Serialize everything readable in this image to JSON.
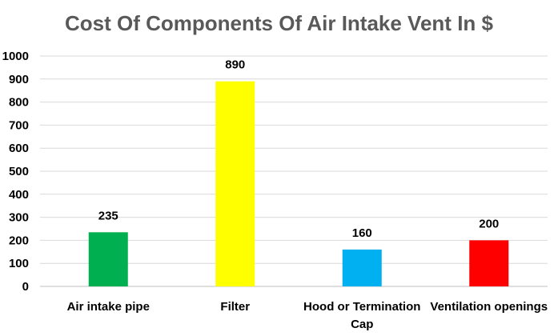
{
  "chart_data": {
    "type": "bar",
    "title": "Cost Of Components Of Air Intake Vent In $",
    "xlabel": "",
    "ylabel": "",
    "categories": [
      [
        "Air intake pipe"
      ],
      [
        "Filter"
      ],
      [
        "Hood or Termination",
        "Cap"
      ],
      [
        "Ventilation openings"
      ]
    ],
    "values": [
      235,
      890,
      160,
      200
    ],
    "colors": [
      "#00b050",
      "#ffff00",
      "#00b0f0",
      "#ff0000"
    ],
    "ylim": [
      0,
      1000
    ],
    "yticks": [
      0,
      100,
      200,
      300,
      400,
      500,
      600,
      700,
      800,
      900,
      1000
    ],
    "grid": true,
    "legend": "none"
  }
}
